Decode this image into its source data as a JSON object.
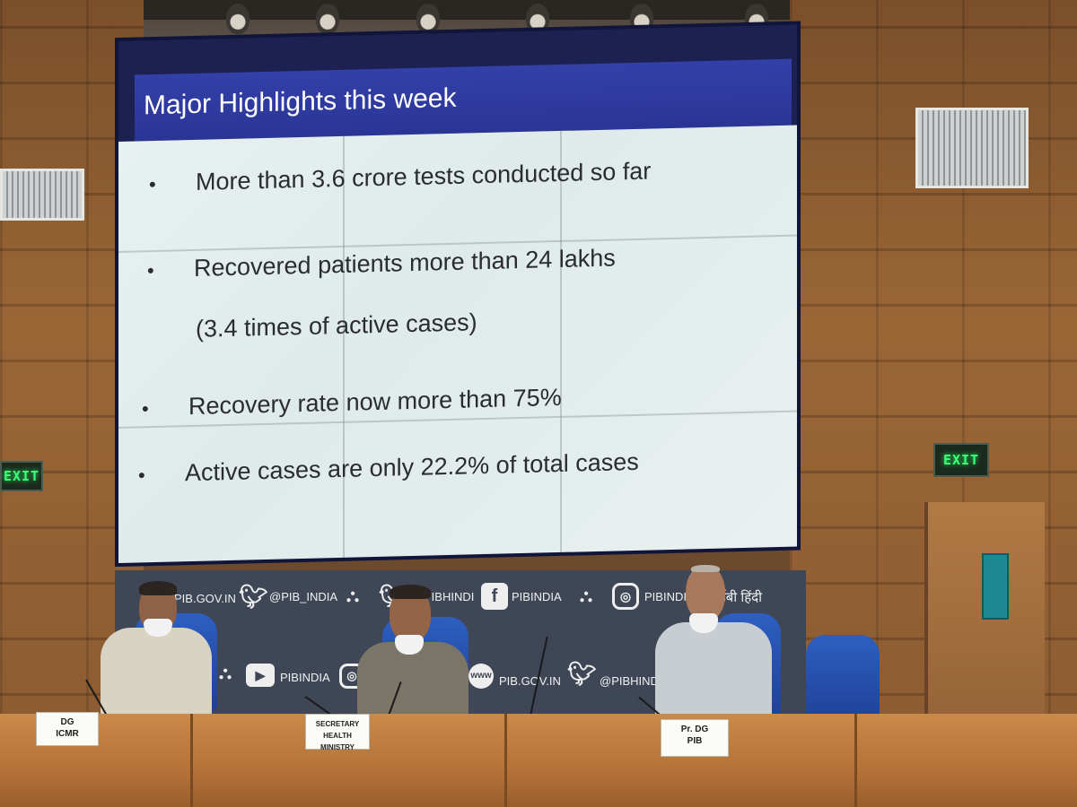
{
  "slide": {
    "title": "Major Highlights this week",
    "bullets": [
      {
        "text": "More than 3.6 crore tests conducted so far"
      },
      {
        "text": "Recovered patients more than 24 lakhs",
        "subtext": "(3.4 times of active cases)"
      },
      {
        "text": "Recovery rate now more than 75%"
      },
      {
        "text": "Active cases are only 22.2% of total cases"
      }
    ],
    "bullet_symbol": "•",
    "colors": {
      "header": "#2f3a9e",
      "body": "#e6eeee",
      "text": "#2a2c2e"
    }
  },
  "exit_signs": [
    "EXIT",
    "EXIT"
  ],
  "banner": {
    "items": [
      {
        "icon": "emblem-icon",
        "label": "PIB.GOV.IN"
      },
      {
        "icon": "twitter-icon",
        "label": "@PIB_INDIA"
      },
      {
        "icon": "emblem-icon",
        "label": ""
      },
      {
        "icon": "twitter-icon",
        "label": "PIBHINDI"
      },
      {
        "icon": "facebook-icon",
        "label": "PIBINDIA"
      },
      {
        "icon": "emblem-icon",
        "label": ""
      },
      {
        "icon": "instagram-icon",
        "label": "PIBINDIA"
      },
      {
        "icon": "",
        "label": "आईबी हिंदी"
      },
      {
        "icon": "emblem-icon",
        "label": ""
      },
      {
        "icon": "youtube-icon",
        "label": "PIBINDIA"
      },
      {
        "icon": "instagram-icon",
        "label": ""
      },
      {
        "icon": "www-icon",
        "label": "PIB.GOV.IN"
      },
      {
        "icon": "twitter-icon",
        "label": "@PIBHINDI"
      }
    ]
  },
  "nameplates": [
    {
      "lines": [
        "DG",
        "ICMR"
      ]
    },
    {
      "lines": [
        "SECRETARY",
        "HEALTH MINISTRY"
      ]
    },
    {
      "lines": [
        "Pr. DG",
        "PIB"
      ]
    }
  ]
}
